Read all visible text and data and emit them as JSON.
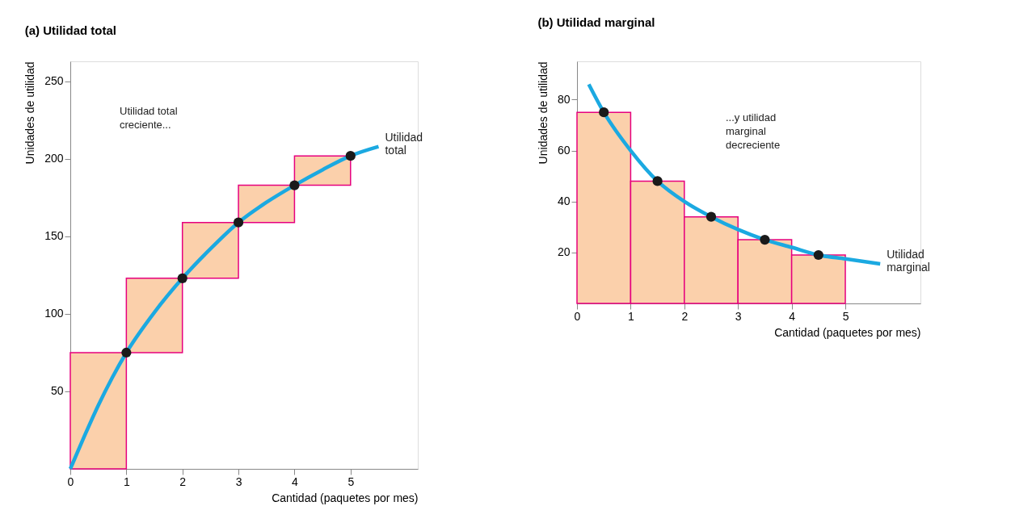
{
  "chart_data": [
    {
      "type": "bar",
      "title": "(a) Utilidad total",
      "xlabel": "Cantidad (paquetes por mes)",
      "ylabel": "Unidades de utilidad",
      "xlim": [
        0,
        6.2
      ],
      "xticks": [
        0,
        1,
        2,
        3,
        4,
        5
      ],
      "ylim": [
        0,
        263
      ],
      "yticks": [
        50,
        100,
        150,
        200,
        250
      ],
      "grid": false,
      "annotations": [
        "Utilidad total\ncreciente..."
      ],
      "series": [
        {
          "color": "#fbd0ab",
          "x": [
            0.5,
            1.5,
            2.5,
            3.5,
            4.5
          ],
          "base": [
            0,
            75,
            123,
            159,
            183
          ],
          "values": [
            75,
            48,
            36,
            24,
            19
          ]
        },
        {
          "type": "line",
          "name": "Utilidad total",
          "color": "#1ba9e1",
          "x": [
            0,
            0.25,
            0.5,
            0.75,
            1,
            1.5,
            2,
            2.5,
            3,
            3.5,
            4,
            4.5,
            5,
            5.5
          ],
          "values": [
            0,
            21,
            41,
            59,
            75,
            101,
            123,
            142,
            159,
            172,
            183,
            193,
            202,
            208
          ]
        },
        {
          "type": "scatter",
          "marker": "circle",
          "color": "#1a1a1a",
          "x": [
            1,
            2,
            3,
            4,
            5
          ],
          "values": [
            75,
            123,
            159,
            183,
            202
          ]
        }
      ]
    },
    {
      "type": "bar",
      "title": "(b) Utilidad marginal",
      "xlabel": "Cantidad (paquetes por mes)",
      "ylabel": "Unidades de utilidad",
      "xlim": [
        0,
        6.4
      ],
      "xticks": [
        0,
        1,
        2,
        3,
        4,
        5
      ],
      "ylim": [
        0,
        95
      ],
      "yticks": [
        20,
        40,
        60,
        80
      ],
      "grid": false,
      "annotations": [
        "...y utilidad\nmarginal\ndecreciente"
      ],
      "series": [
        {
          "color": "#fbd0ab",
          "x": [
            0.5,
            1.5,
            2.5,
            3.5,
            4.5
          ],
          "values": [
            75,
            48,
            34,
            25,
            19
          ]
        },
        {
          "type": "line",
          "name": "Utilidad marginal",
          "color": "#1ba9e1",
          "x": [
            0.22,
            0.5,
            1,
            1.5,
            2,
            2.5,
            3,
            3.5,
            4,
            4.5,
            5,
            5.65
          ],
          "values": [
            86,
            75,
            60,
            48,
            40,
            34,
            29,
            25,
            22,
            19,
            17.5,
            15.5
          ]
        },
        {
          "type": "scatter",
          "marker": "circle",
          "color": "#1a1a1a",
          "x": [
            0.5,
            1.5,
            2.5,
            3.5,
            4.5
          ],
          "values": [
            75,
            48,
            34,
            25,
            19
          ]
        }
      ]
    }
  ]
}
